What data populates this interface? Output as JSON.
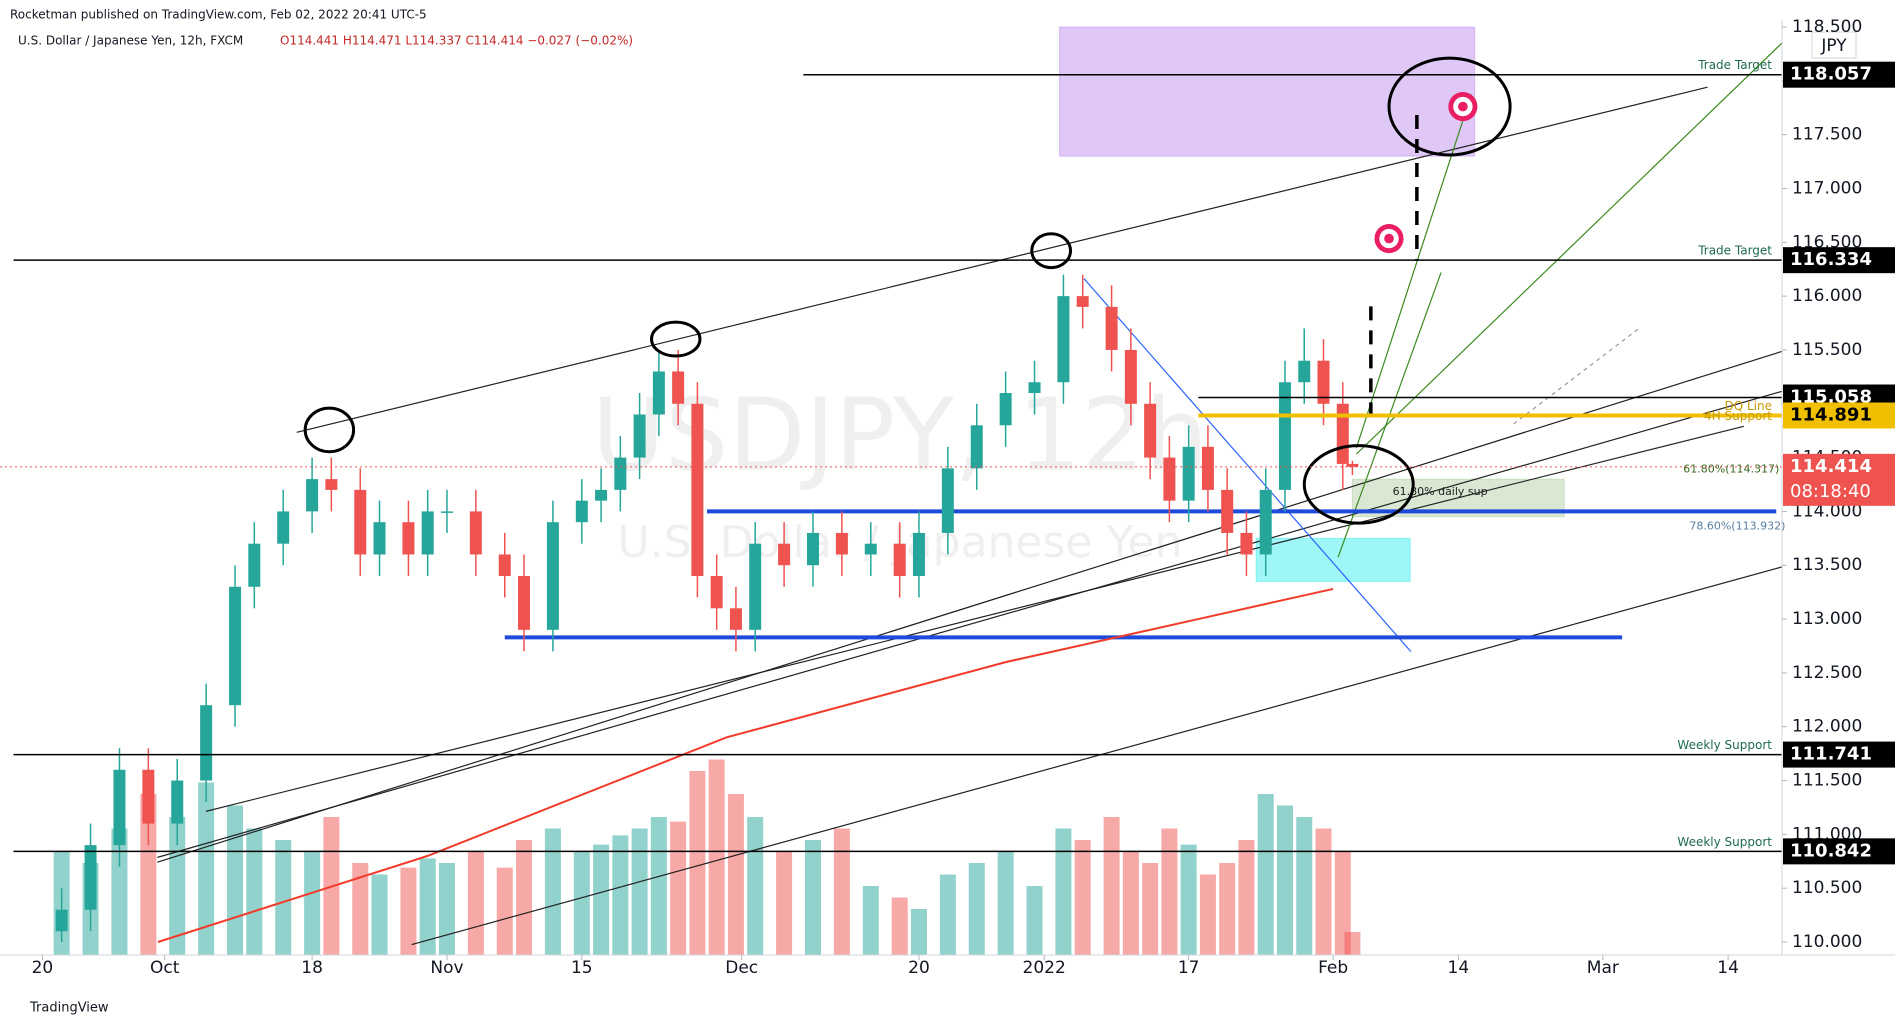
{
  "header": {
    "publisher": "Rocketman published on TradingView.com, Feb 02, 2022 20:41 UTC-5",
    "symbol_line": "U.S. Dollar / Japanese Yen, 12h, FXCM",
    "ohlc": "O114.441 H114.471 L114.337 C114.414 −0.027 (−0.02%)"
  },
  "chart_data": {
    "type": "candlestick",
    "watermark": "USDJPY, 12h",
    "watermark_sub": "U.S. Dollar / Japanese Yen",
    "currency": "JPY",
    "up_color": "#26a69a",
    "down_color": "#ef5350",
    "x": [
      2,
      5,
      8,
      11,
      14,
      17,
      20,
      22,
      25,
      28,
      30,
      33,
      35,
      38,
      40,
      42,
      45,
      48,
      50,
      53,
      56,
      58,
      60,
      62,
      64,
      66,
      68,
      70,
      72,
      74,
      77,
      80,
      83,
      86,
      89,
      91,
      94,
      97,
      100,
      103,
      106,
      108,
      111,
      113,
      115,
      117,
      119,
      121,
      123,
      125,
      127,
      129,
      131,
      133,
      135,
      136
    ],
    "open": [
      110.1,
      110.3,
      110.9,
      111.6,
      111.1,
      111.5,
      112.2,
      113.3,
      113.7,
      114.0,
      114.3,
      114.2,
      113.6,
      113.9,
      113.6,
      114.0,
      114.0,
      113.6,
      113.4,
      112.9,
      113.9,
      114.1,
      114.2,
      114.5,
      114.9,
      115.3,
      115.0,
      113.4,
      113.1,
      112.9,
      113.7,
      113.5,
      113.8,
      113.6,
      113.7,
      113.4,
      113.8,
      114.4,
      114.8,
      115.1,
      115.2,
      116.0,
      115.9,
      115.5,
      115.0,
      114.5,
      114.1,
      114.6,
      114.2,
      113.8,
      113.6,
      114.2,
      115.2,
      115.4,
      115.0,
      114.441
    ],
    "high": [
      110.5,
      111.1,
      111.8,
      111.8,
      111.7,
      112.4,
      113.5,
      113.9,
      114.2,
      114.5,
      114.5,
      114.4,
      114.1,
      114.1,
      114.2,
      114.2,
      114.2,
      113.8,
      113.6,
      114.1,
      114.3,
      114.4,
      114.7,
      115.1,
      115.5,
      115.5,
      115.2,
      113.6,
      113.3,
      113.9,
      113.9,
      114.0,
      114.0,
      113.9,
      113.9,
      114.0,
      114.6,
      115.0,
      115.3,
      115.4,
      116.2,
      116.2,
      116.1,
      115.7,
      115.2,
      114.7,
      114.8,
      114.8,
      114.4,
      114.0,
      114.4,
      115.4,
      115.7,
      115.6,
      115.2,
      114.471
    ],
    "low": [
      110.0,
      110.1,
      110.7,
      110.9,
      110.9,
      111.3,
      112.0,
      113.1,
      113.5,
      113.8,
      114.0,
      113.4,
      113.4,
      113.4,
      113.4,
      113.8,
      113.4,
      113.2,
      112.7,
      112.7,
      113.7,
      113.9,
      114.0,
      114.3,
      114.7,
      114.8,
      113.2,
      112.9,
      112.7,
      112.7,
      113.3,
      113.3,
      113.4,
      113.4,
      113.2,
      113.2,
      113.6,
      114.2,
      114.6,
      114.9,
      115.0,
      115.7,
      115.3,
      114.8,
      114.3,
      113.9,
      113.9,
      114.0,
      113.6,
      113.4,
      113.4,
      114.0,
      115.0,
      114.8,
      114.2,
      114.337
    ],
    "close": [
      110.3,
      110.9,
      111.6,
      111.1,
      111.5,
      112.2,
      113.3,
      113.7,
      114.0,
      114.3,
      114.2,
      113.6,
      113.9,
      113.6,
      114.0,
      114.0,
      113.6,
      113.4,
      112.9,
      113.9,
      114.1,
      114.2,
      114.5,
      114.9,
      115.3,
      115.0,
      113.4,
      113.1,
      112.9,
      113.7,
      113.5,
      113.8,
      113.6,
      113.7,
      113.4,
      113.8,
      114.4,
      114.8,
      115.1,
      115.2,
      116.0,
      115.9,
      115.5,
      115.0,
      114.5,
      114.1,
      114.6,
      114.2,
      113.8,
      113.6,
      114.2,
      115.2,
      115.4,
      115.0,
      114.441,
      114.414
    ],
    "volume": [
      45,
      40,
      55,
      70,
      60,
      75,
      65,
      55,
      50,
      45,
      60,
      40,
      35,
      38,
      42,
      40,
      45,
      38,
      50,
      55,
      45,
      48,
      52,
      55,
      60,
      58,
      80,
      85,
      70,
      60,
      45,
      50,
      55,
      30,
      25,
      20,
      35,
      40,
      45,
      30,
      55,
      50,
      60,
      45,
      40,
      55,
      48,
      35,
      40,
      50,
      70,
      65,
      60,
      55,
      45,
      10
    ],
    "xlim": [
      -3,
      182
    ],
    "xticks": [
      {
        "value": 0,
        "label": "20"
      },
      {
        "value": 12.7,
        "label": "Oct"
      },
      {
        "value": 28,
        "label": "18"
      },
      {
        "value": 42,
        "label": "Nov"
      },
      {
        "value": 56,
        "label": "15"
      },
      {
        "value": 72.6,
        "label": "Dec"
      },
      {
        "value": 91,
        "label": "20"
      },
      {
        "value": 104,
        "label": "2022"
      },
      {
        "value": 119,
        "label": "17"
      },
      {
        "value": 134,
        "label": "Feb"
      },
      {
        "value": 147,
        "label": "14"
      },
      {
        "value": 162,
        "label": "Mar"
      },
      {
        "value": 175,
        "label": "14"
      }
    ],
    "ylim": [
      110,
      118.5
    ],
    "yticks": [
      {
        "value": 110,
        "label": "110.000"
      },
      {
        "value": 110.5,
        "label": "110.500"
      },
      {
        "value": 111,
        "label": "111.000"
      },
      {
        "value": 111.5,
        "label": "111.500"
      },
      {
        "value": 112,
        "label": "112.000"
      },
      {
        "value": 112.5,
        "label": "112.500"
      },
      {
        "value": 113,
        "label": "113.000"
      },
      {
        "value": 113.5,
        "label": "113.500"
      },
      {
        "value": 114,
        "label": "114.000"
      },
      {
        "value": 114.5,
        "label": "114.500"
      },
      {
        "value": 115,
        "label": "115.000"
      },
      {
        "value": 115.5,
        "label": "115.500"
      },
      {
        "value": 116,
        "label": "116.000"
      },
      {
        "value": 116.5,
        "label": "116.500"
      },
      {
        "value": 117,
        "label": "117.000"
      },
      {
        "value": 117.5,
        "label": "117.500"
      },
      {
        "value": 118,
        "label": "118.000"
      },
      {
        "value": 118.5,
        "label": "118.500"
      }
    ],
    "levels": [
      {
        "value": 118.057,
        "from": 79,
        "color": "#000000",
        "notes": [
          "Trade Target"
        ]
      },
      {
        "value": 116.334,
        "from": -3,
        "color": "#000000",
        "notes": [
          "Trade Target"
        ]
      },
      {
        "value": 115.058,
        "from": 120,
        "color": "#000000",
        "notes": []
      },
      {
        "value": 114.891,
        "from": 120,
        "color": "#f0c000",
        "notes": [
          "DQ Line",
          "4H Support"
        ]
      },
      {
        "value": 111.741,
        "from": -3,
        "color": "#000000",
        "notes": [
          "Weekly Support"
        ]
      },
      {
        "value": 110.842,
        "from": -3,
        "color": "#000000",
        "notes": [
          "Weekly Support"
        ]
      }
    ],
    "last_price": {
      "value": 114.414,
      "countdown": "08:18:40",
      "color": "#ef5350"
    },
    "zones": [
      {
        "from": 105.6,
        "to": 148.7,
        "low": 117.3,
        "high": 118.5,
        "color": "rgba(185,130,235,0.45)"
      },
      {
        "from": 126,
        "to": 142,
        "low": 113.35,
        "high": 113.75,
        "color": "rgba(40,235,235,0.45)"
      },
      {
        "from": 136,
        "to": 158,
        "low": 113.95,
        "high": 114.3,
        "color": "rgba(150,190,130,0.35)"
      }
    ],
    "support_lines": [
      {
        "value": 114.0,
        "from": 69,
        "to": 180,
        "color": "#1e4bdc"
      },
      {
        "value": 112.83,
        "from": 48,
        "to": 164,
        "color": "#1e4bdc"
      }
    ],
    "ema": {
      "color": "#f23b2a",
      "x": [
        12,
        40,
        71,
        100,
        120,
        134
      ],
      "values": [
        110.0,
        110.8,
        111.9,
        112.6,
        113.0,
        113.28
      ]
    },
    "annotations": [
      "61.80%(114.317)",
      "61.80% daily sup",
      "78.60%(113.932)"
    ]
  },
  "footer": "TradingView"
}
